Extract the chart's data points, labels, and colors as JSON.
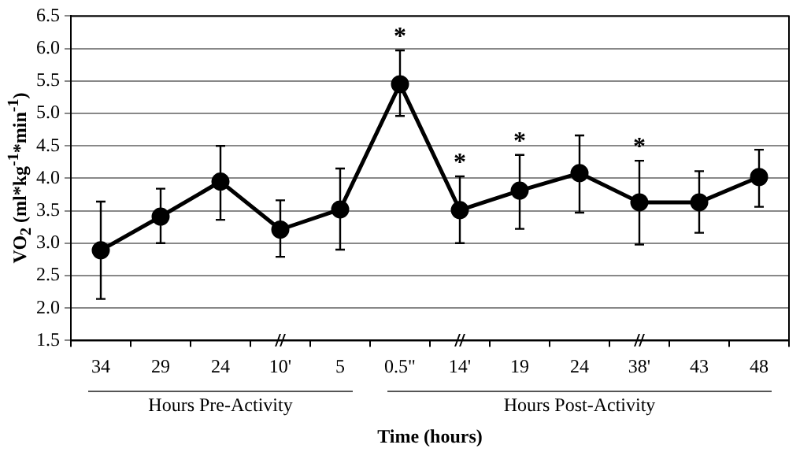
{
  "chart_data": {
    "type": "line",
    "xlabel": "Time (hours)",
    "ylabel": "VO$_{2}$ (ml*kg$^{-1}$*min$^{-1}$)",
    "categories": [
      "34",
      "29",
      "24",
      "10'",
      "5",
      "0.5\"",
      "14'",
      "19",
      "24",
      "38'",
      "43",
      "48"
    ],
    "series": [
      {
        "color": "#000000",
        "values": [
          2.89,
          3.41,
          3.95,
          3.21,
          3.52,
          5.45,
          3.51,
          3.81,
          4.08,
          3.63,
          3.63,
          4.02
        ],
        "errors": [
          [
            2.14,
            3.64
          ],
          [
            3.0,
            3.84
          ],
          [
            3.36,
            4.5
          ],
          [
            2.79,
            3.66
          ],
          [
            2.9,
            4.15
          ],
          [
            4.96,
            5.97
          ],
          [
            3.0,
            4.03
          ],
          [
            3.22,
            4.36
          ],
          [
            3.47,
            4.66
          ],
          [
            2.98,
            4.27
          ],
          [
            3.16,
            4.11
          ],
          [
            3.56,
            4.44
          ]
        ]
      }
    ],
    "ylim": [
      1.5,
      6.5
    ],
    "yticks": [
      {
        "value": 1.5,
        "label": "1.5"
      },
      {
        "value": 2,
        "label": "2.0"
      },
      {
        "value": 2.5,
        "label": "2.5"
      },
      {
        "value": 3,
        "label": "3.0"
      },
      {
        "value": 3.5,
        "label": "3.5"
      },
      {
        "value": 4,
        "label": "4.0"
      },
      {
        "value": 4.5,
        "label": "4.5"
      },
      {
        "value": 5,
        "label": "5.0"
      },
      {
        "value": 5.5,
        "label": "5.5"
      },
      {
        "value": 6,
        "label": "6.0"
      },
      {
        "value": 6.5,
        "label": "6.5"
      }
    ],
    "grid": "y",
    "legend": false,
    "marker": "circle",
    "line_style": "solid",
    "annotations": [
      "*",
      "*",
      "*",
      "*",
      "Hours Pre-Activity",
      "Hours Post-Activity"
    ]
  }
}
